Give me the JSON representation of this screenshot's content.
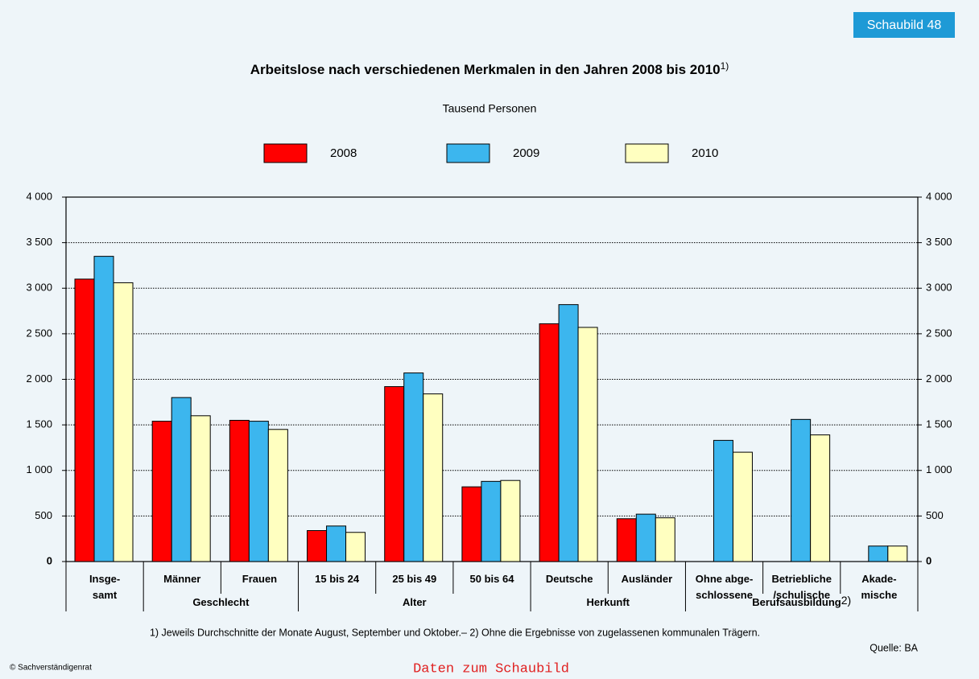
{
  "badge": "Schaubild 48",
  "chart_data": {
    "type": "bar",
    "title": "Arbeitslose nach verschiedenen Merkmalen in den Jahren 2008 bis 2010",
    "title_note": "1)",
    "subtitle": "Tausend Personen",
    "categories": [
      "Insge-\nsamt",
      "Männer",
      "Frauen",
      "15 bis 24",
      "25 bis 49",
      "50 bis 64",
      "Deutsche",
      "Ausländer",
      "Ohne abge-\nschlossene",
      "Betriebliche\n/schulische",
      "Akade-\nmische"
    ],
    "category_groups": [
      null,
      "Geschlecht",
      "Geschlecht",
      "Alter",
      "Alter",
      "Alter",
      "Herkunft",
      "Herkunft",
      "Berufsausbildung",
      "Berufsausbildung",
      "Berufsausbildung"
    ],
    "group_note": "2)",
    "series": [
      {
        "name": "2008",
        "color": "#ff0000",
        "values": [
          3100,
          1540,
          1550,
          340,
          1920,
          820,
          2610,
          470,
          null,
          null,
          null
        ]
      },
      {
        "name": "2009",
        "color": "#3cb6ee",
        "values": [
          3350,
          1800,
          1540,
          390,
          2070,
          880,
          2820,
          520,
          1330,
          1560,
          170
        ]
      },
      {
        "name": "2010",
        "color": "#ffffc0",
        "values": [
          3060,
          1600,
          1450,
          320,
          1840,
          890,
          2570,
          480,
          1200,
          1390,
          170
        ]
      }
    ],
    "ylim": [
      0,
      4000
    ],
    "yticks": [
      0,
      500,
      {
        "value": 1000,
        "label": "1 000"
      },
      {
        "value": 1500,
        "label": "1 500"
      },
      {
        "value": 2000,
        "label": "2 000"
      },
      {
        "value": 2500,
        "label": "2 500"
      },
      {
        "value": 3000,
        "label": "3 000"
      },
      {
        "value": 3500,
        "label": "3 500"
      },
      {
        "value": 4000,
        "label": "4 000"
      }
    ],
    "grid": true
  },
  "footnote": "1) Jeweils Durchschnitte der Monate August, September und Oktober.– 2) Ohne die Ergebnisse von zugelassenen kommunalen Trägern.",
  "source": "Quelle: BA",
  "copyright": "© Sachverständigenrat",
  "link": "Daten zum Schaubild"
}
